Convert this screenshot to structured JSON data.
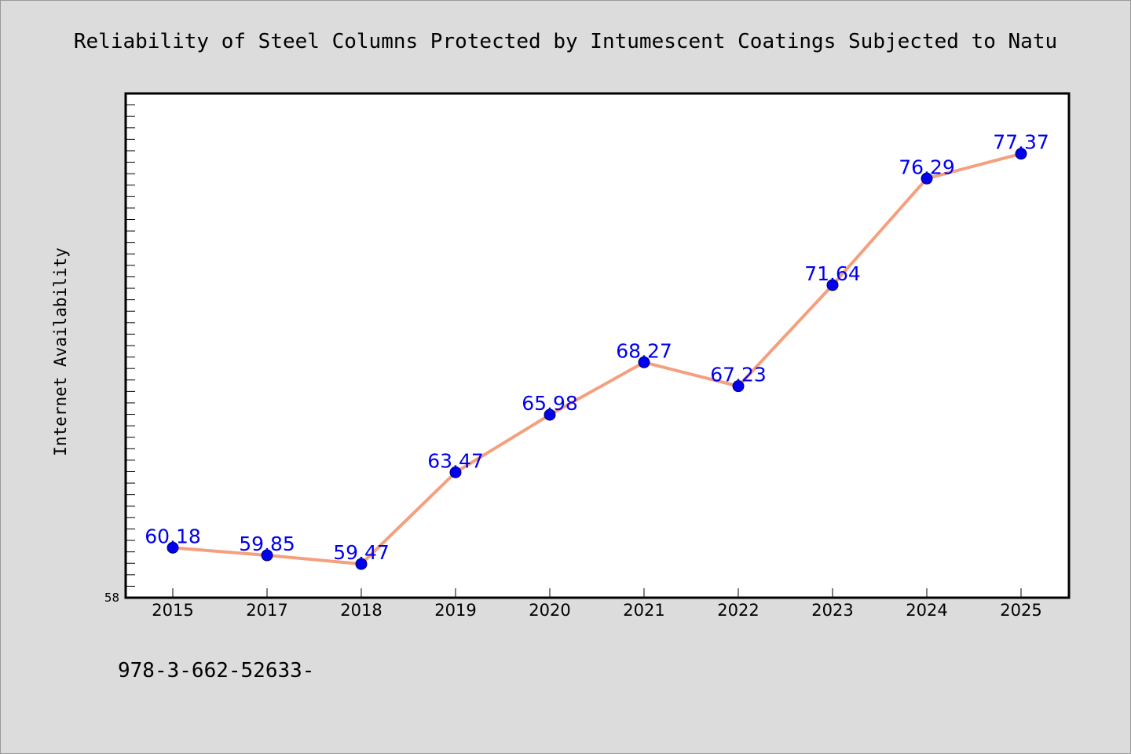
{
  "chart_data": {
    "type": "line",
    "title": "Reliability of Steel Columns Protected by Intumescent Coatings Subjected to Natu",
    "xlabel": "",
    "ylabel": "Internet Availability",
    "categories": [
      "2015",
      "2017",
      "2018",
      "2019",
      "2020",
      "2021",
      "2022",
      "2023",
      "2024",
      "2025"
    ],
    "series": [
      {
        "values": [
          60.18,
          59.85,
          59.47,
          63.47,
          65.98,
          68.27,
          67.23,
          71.64,
          76.29,
          77.37
        ],
        "labels": [
          "60.18",
          "59.85",
          "59.47",
          "63.47",
          "65.98",
          "68.27",
          "67.23",
          "71.64",
          "76.29",
          "77.37"
        ]
      }
    ],
    "ylim": [
      58,
      80
    ],
    "yticks_labeled": [
      "58"
    ],
    "grid": false,
    "legend": "none",
    "colors": {
      "line": "#f4a07e",
      "marker": "#0000ee",
      "data_label": "#0000ee",
      "plot_background": "#ffffff",
      "figure_background": "#dcdcdc"
    }
  },
  "caption": "978-3-662-52633-"
}
